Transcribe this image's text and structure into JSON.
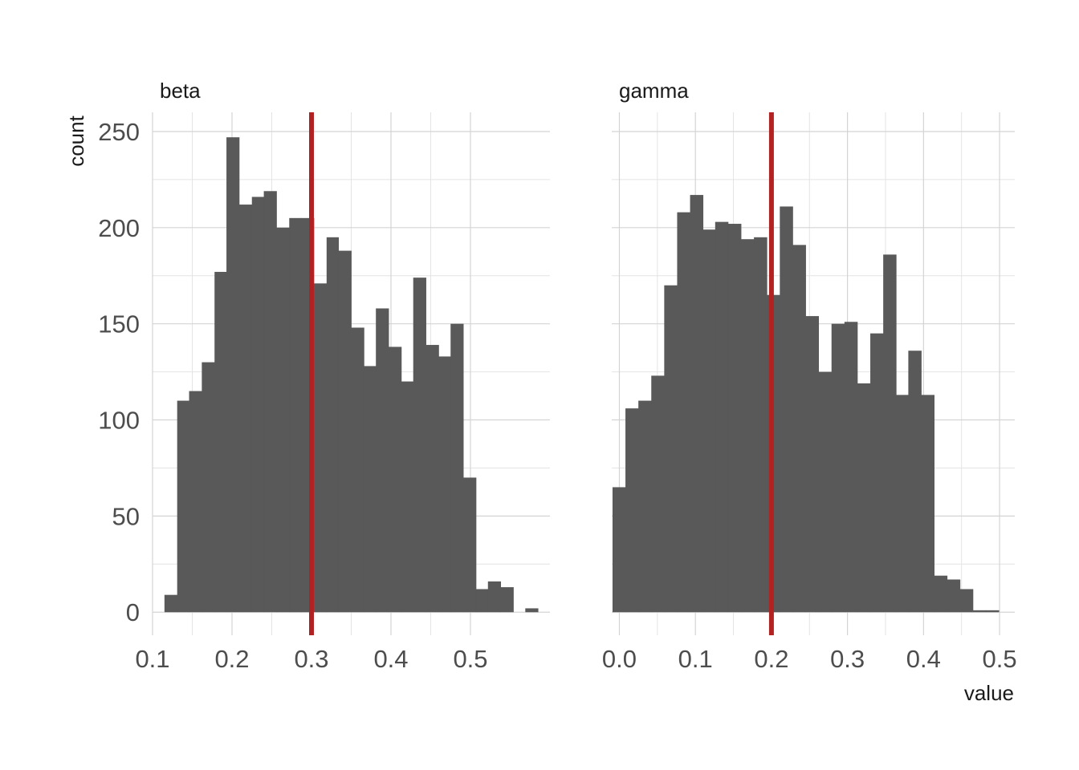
{
  "chart_data": {
    "type": "bar",
    "subtype": "histogram",
    "xlabel": "value",
    "ylabel": "count",
    "grid": true,
    "bar_color": "#595959",
    "ref_line_color": "#B22222",
    "y_ticks": [
      "0",
      "50",
      "100",
      "150",
      "200",
      "250"
    ],
    "ylim": [
      -12,
      260
    ],
    "panels": [
      {
        "name": "beta",
        "xlim": [
          0.1,
          0.6
        ],
        "x_ticks": [
          "0.1",
          "0.2",
          "0.3",
          "0.4",
          "0.5"
        ],
        "x_tick_values": [
          0.1,
          0.2,
          0.3,
          0.4,
          0.5
        ],
        "ref_line": 0.3,
        "bins": [
          {
            "x0": 0.115,
            "x1": 0.131,
            "count": 9
          },
          {
            "x0": 0.131,
            "x1": 0.146,
            "count": 110
          },
          {
            "x0": 0.146,
            "x1": 0.162,
            "count": 115
          },
          {
            "x0": 0.162,
            "x1": 0.178,
            "count": 130
          },
          {
            "x0": 0.178,
            "x1": 0.193,
            "count": 177
          },
          {
            "x0": 0.193,
            "x1": 0.209,
            "count": 247
          },
          {
            "x0": 0.209,
            "x1": 0.225,
            "count": 212
          },
          {
            "x0": 0.225,
            "x1": 0.24,
            "count": 216
          },
          {
            "x0": 0.24,
            "x1": 0.256,
            "count": 219
          },
          {
            "x0": 0.256,
            "x1": 0.272,
            "count": 200
          },
          {
            "x0": 0.272,
            "x1": 0.287,
            "count": 205
          },
          {
            "x0": 0.287,
            "x1": 0.303,
            "count": 205
          },
          {
            "x0": 0.303,
            "x1": 0.319,
            "count": 171
          },
          {
            "x0": 0.319,
            "x1": 0.334,
            "count": 195
          },
          {
            "x0": 0.334,
            "x1": 0.35,
            "count": 188
          },
          {
            "x0": 0.35,
            "x1": 0.366,
            "count": 148
          },
          {
            "x0": 0.366,
            "x1": 0.381,
            "count": 128
          },
          {
            "x0": 0.381,
            "x1": 0.397,
            "count": 158
          },
          {
            "x0": 0.397,
            "x1": 0.413,
            "count": 138
          },
          {
            "x0": 0.413,
            "x1": 0.428,
            "count": 120
          },
          {
            "x0": 0.428,
            "x1": 0.444,
            "count": 174
          },
          {
            "x0": 0.444,
            "x1": 0.46,
            "count": 139
          },
          {
            "x0": 0.46,
            "x1": 0.475,
            "count": 133
          },
          {
            "x0": 0.475,
            "x1": 0.491,
            "count": 150
          },
          {
            "x0": 0.491,
            "x1": 0.507,
            "count": 70
          },
          {
            "x0": 0.507,
            "x1": 0.522,
            "count": 12
          },
          {
            "x0": 0.522,
            "x1": 0.538,
            "count": 16
          },
          {
            "x0": 0.538,
            "x1": 0.554,
            "count": 13
          },
          {
            "x0": 0.554,
            "x1": 0.569,
            "count": 0
          },
          {
            "x0": 0.569,
            "x1": 0.585,
            "count": 2
          }
        ]
      },
      {
        "name": "gamma",
        "xlim": [
          -0.01,
          0.52
        ],
        "x_ticks": [
          "0.0",
          "0.1",
          "0.2",
          "0.3",
          "0.4",
          "0.5"
        ],
        "x_tick_values": [
          0.0,
          0.1,
          0.2,
          0.3,
          0.4,
          0.5
        ],
        "ref_line": 0.2,
        "bins": [
          {
            "x0": -0.009,
            "x1": 0.008,
            "count": 65
          },
          {
            "x0": 0.008,
            "x1": 0.025,
            "count": 106
          },
          {
            "x0": 0.025,
            "x1": 0.042,
            "count": 110
          },
          {
            "x0": 0.042,
            "x1": 0.059,
            "count": 123
          },
          {
            "x0": 0.059,
            "x1": 0.076,
            "count": 170
          },
          {
            "x0": 0.076,
            "x1": 0.093,
            "count": 208
          },
          {
            "x0": 0.093,
            "x1": 0.11,
            "count": 217
          },
          {
            "x0": 0.11,
            "x1": 0.126,
            "count": 199
          },
          {
            "x0": 0.126,
            "x1": 0.143,
            "count": 203
          },
          {
            "x0": 0.143,
            "x1": 0.16,
            "count": 202
          },
          {
            "x0": 0.16,
            "x1": 0.177,
            "count": 194
          },
          {
            "x0": 0.177,
            "x1": 0.194,
            "count": 195
          },
          {
            "x0": 0.194,
            "x1": 0.211,
            "count": 165
          },
          {
            "x0": 0.211,
            "x1": 0.228,
            "count": 211
          },
          {
            "x0": 0.228,
            "x1": 0.245,
            "count": 191
          },
          {
            "x0": 0.245,
            "x1": 0.262,
            "count": 154
          },
          {
            "x0": 0.262,
            "x1": 0.279,
            "count": 125
          },
          {
            "x0": 0.279,
            "x1": 0.296,
            "count": 150
          },
          {
            "x0": 0.296,
            "x1": 0.313,
            "count": 151
          },
          {
            "x0": 0.313,
            "x1": 0.33,
            "count": 119
          },
          {
            "x0": 0.33,
            "x1": 0.347,
            "count": 145
          },
          {
            "x0": 0.347,
            "x1": 0.364,
            "count": 186
          },
          {
            "x0": 0.364,
            "x1": 0.38,
            "count": 113
          },
          {
            "x0": 0.38,
            "x1": 0.397,
            "count": 136
          },
          {
            "x0": 0.397,
            "x1": 0.414,
            "count": 113
          },
          {
            "x0": 0.414,
            "x1": 0.431,
            "count": 19
          },
          {
            "x0": 0.431,
            "x1": 0.448,
            "count": 17
          },
          {
            "x0": 0.448,
            "x1": 0.465,
            "count": 12
          },
          {
            "x0": 0.465,
            "x1": 0.482,
            "count": 1
          },
          {
            "x0": 0.482,
            "x1": 0.499,
            "count": 1
          }
        ]
      }
    ]
  }
}
